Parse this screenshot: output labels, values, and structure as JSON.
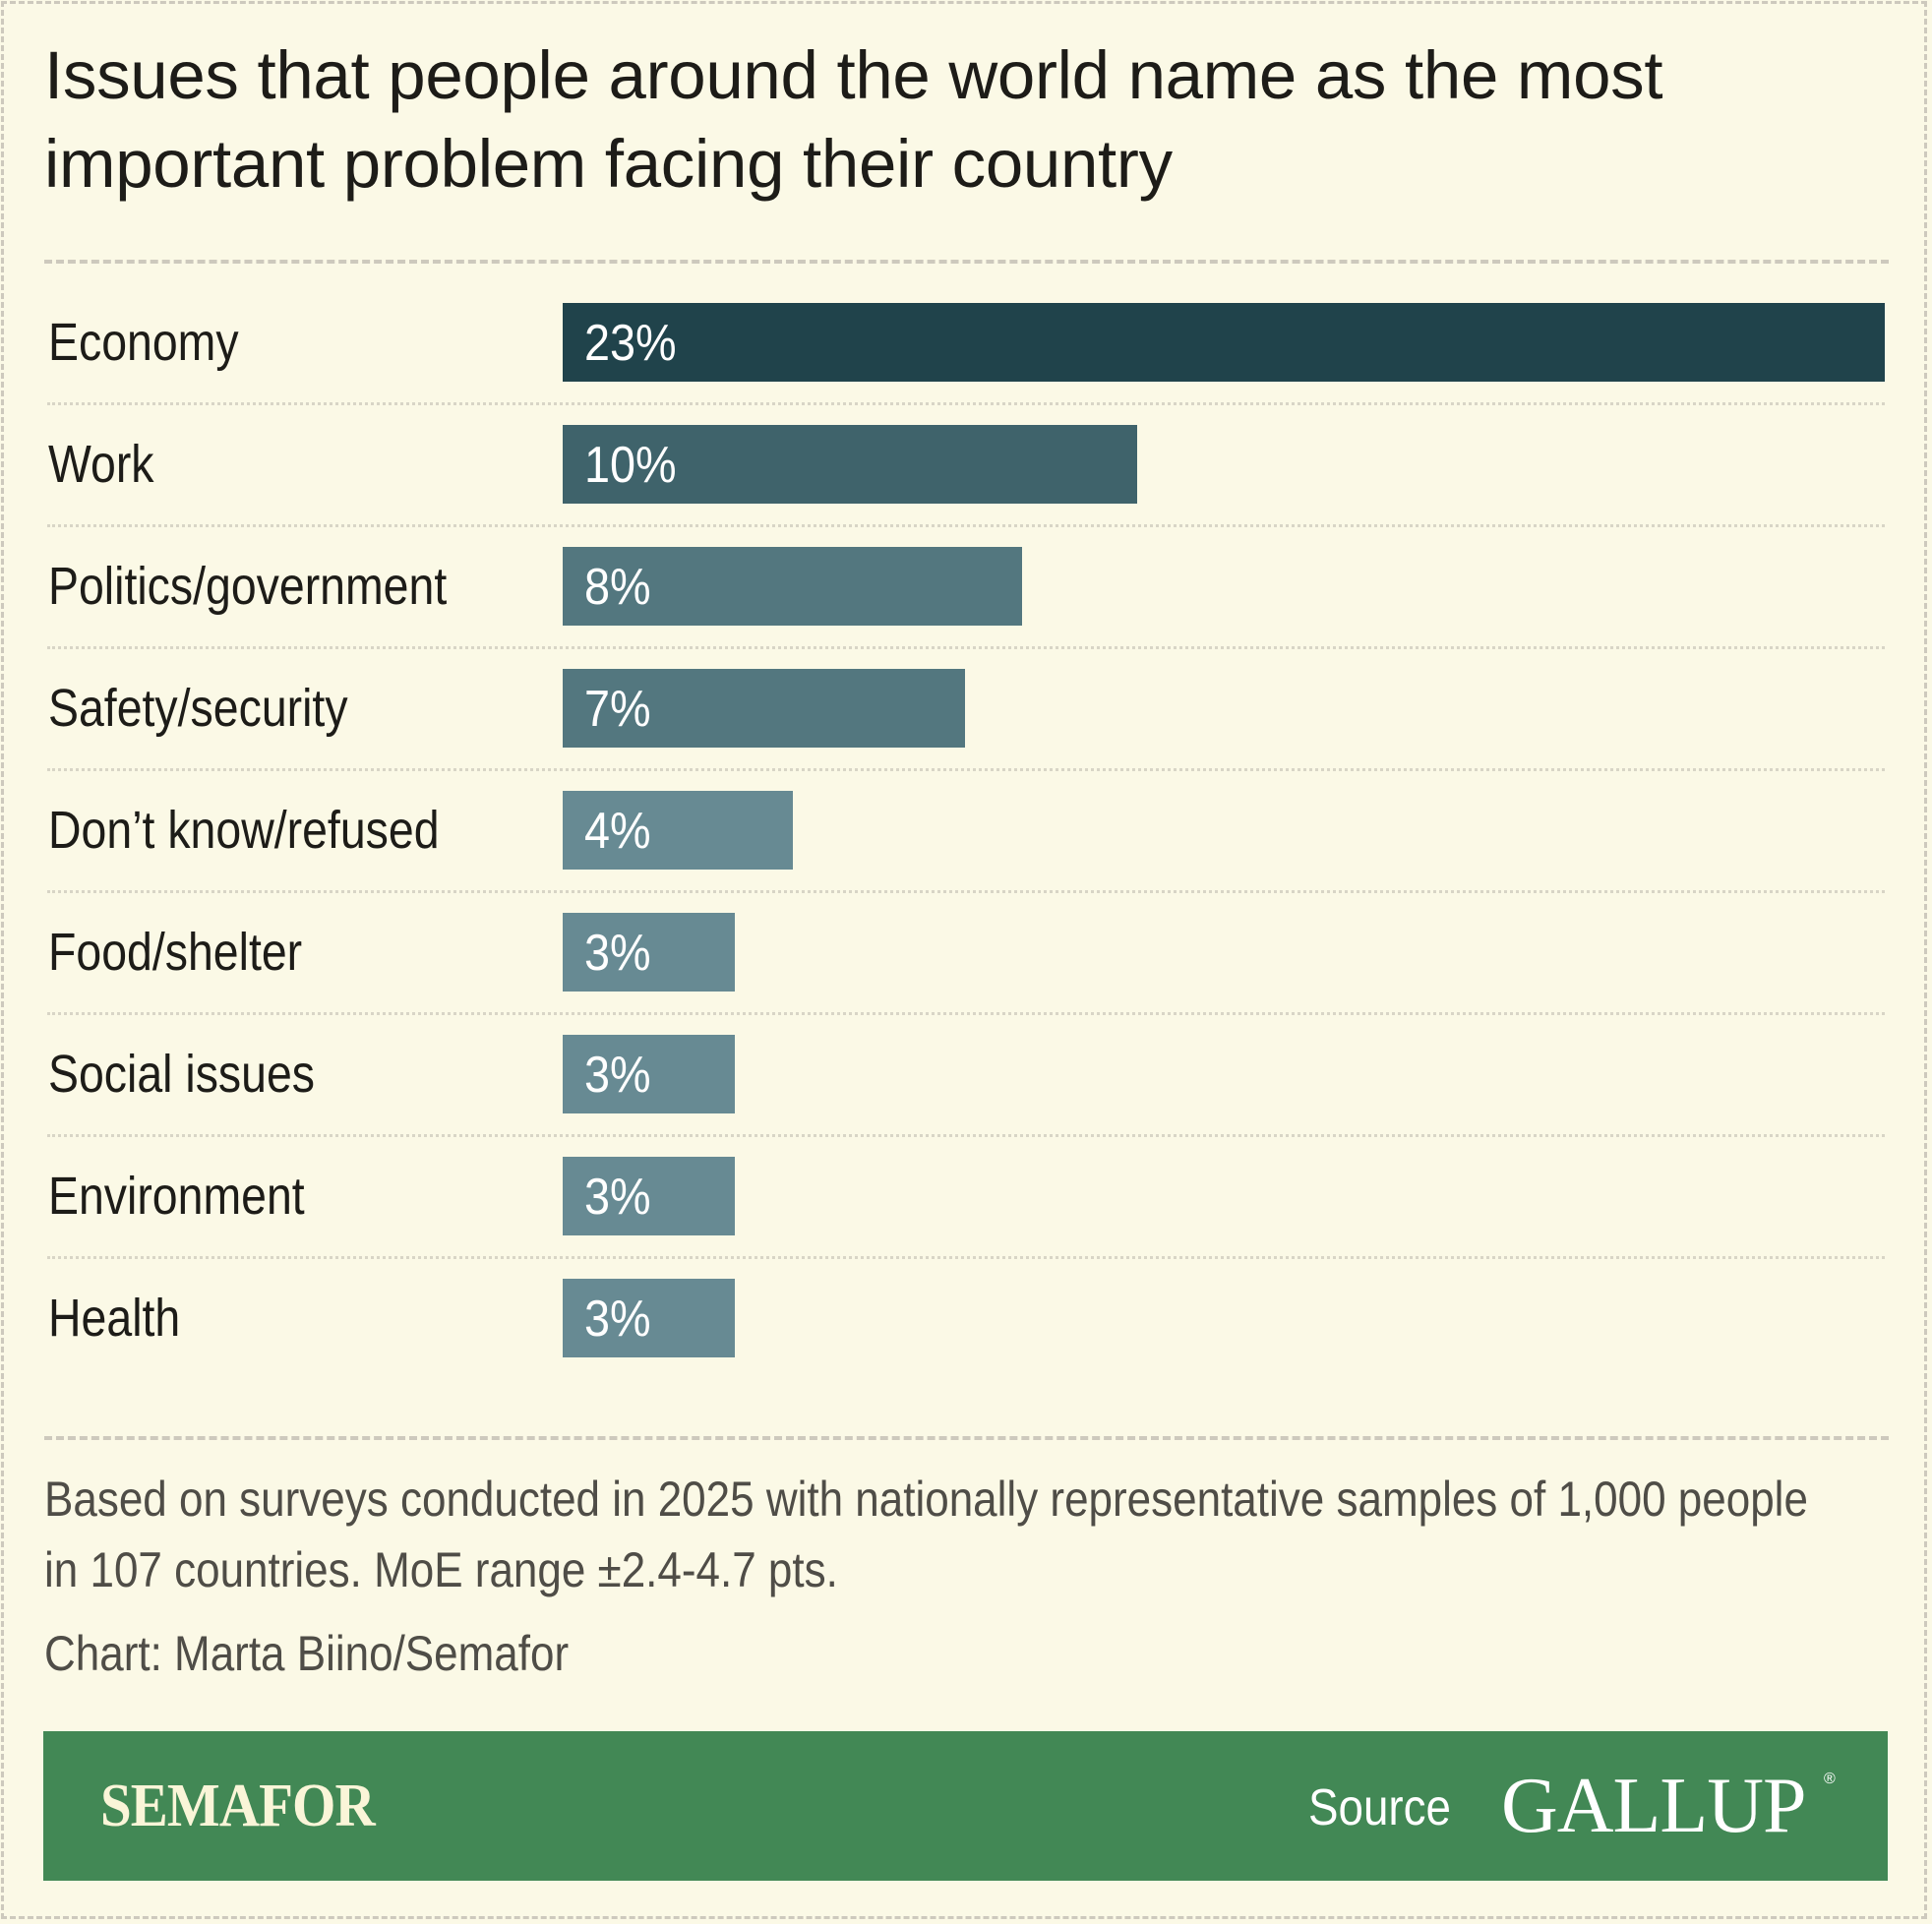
{
  "header": {
    "title": "Issues that people around the world name as the most important problem facing their country"
  },
  "chart_data": {
    "type": "bar",
    "orientation": "horizontal",
    "title": "Issues that people around the world name as the most important problem facing their country",
    "xlabel": "",
    "ylabel": "",
    "unit": "%",
    "categories": [
      "Economy",
      "Work",
      "Politics/government",
      "Safety/security",
      "Don’t know/refused",
      "Food/shelter",
      "Social issues",
      "Environment",
      "Health"
    ],
    "values": [
      23,
      10,
      8,
      7,
      4,
      3,
      3,
      3,
      3
    ],
    "value_labels": [
      "23%",
      "10%",
      "8%",
      "7%",
      "4%",
      "3%",
      "3%",
      "3%",
      "3%"
    ],
    "bar_colors": [
      "#20434b",
      "#3f636b",
      "#53777f",
      "#53777f",
      "#678a93",
      "#678a93",
      "#678a93",
      "#678a93",
      "#678a93"
    ],
    "xlim": [
      0,
      23
    ],
    "grid": false,
    "legend": "none"
  },
  "footer": {
    "note": "Based on surveys conducted in 2025 with nationally representative samples of 1,000 people in 107 countries. MoE range ±2.4-4.7 pts.",
    "credit": "Chart: Marta Biino/Semafor"
  },
  "banner": {
    "brand": "SEMAFOR",
    "source_label": "Source",
    "source_name": "GALLUP",
    "registered_mark": "®",
    "color": "#428855"
  },
  "colors": {
    "background": "#fbf9e6",
    "text": "#1d1c18",
    "muted_text": "#4f4d47",
    "divider": "#cdc9bd"
  }
}
